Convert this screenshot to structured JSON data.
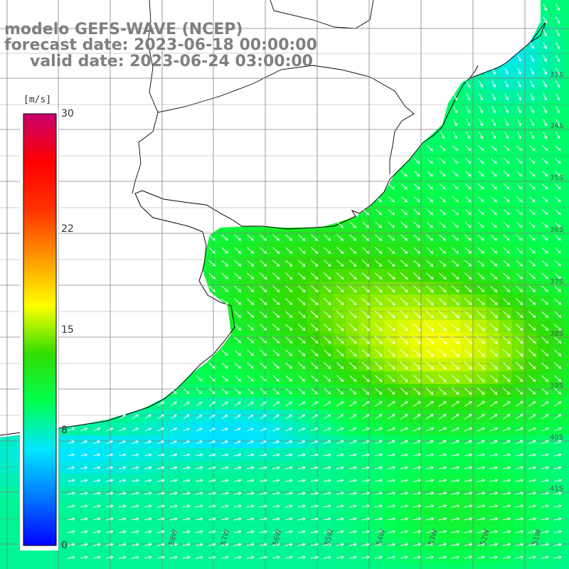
{
  "title": {
    "line1": "modelo GEFS-WAVE (NCEP)",
    "line2": "forecast date: 2023-06-18 00:00:00",
    "line3": "valid date: 2023-06-24 03:00:00"
  },
  "colorbar": {
    "unit": "[m/s]",
    "ticks": [
      {
        "label": "30",
        "value": 30
      },
      {
        "label": "22",
        "value": 22
      },
      {
        "label": "15",
        "value": 15
      },
      {
        "label": "8",
        "value": 8
      },
      {
        "label": "0",
        "value": 0
      }
    ],
    "min": 0,
    "max": 30,
    "stops": [
      "#0000ff",
      "#0078ff",
      "#00e6ff",
      "#00ff50",
      "#32dc00",
      "#ffff00",
      "#ff9600",
      "#ff3200",
      "#ff0000",
      "#c8006e"
    ]
  },
  "map": {
    "lat_labels": [
      "33S",
      "34S",
      "35S",
      "36S",
      "37S",
      "38S",
      "39S",
      "40S",
      "41S"
    ],
    "lon_labels": [
      "58W",
      "57W",
      "56W",
      "55W",
      "54W",
      "53W",
      "52W",
      "51W"
    ],
    "land_color": "#ffffff",
    "coast_color": "#000000",
    "grid_color": "#808080",
    "vector_color": "#ffffff"
  }
}
